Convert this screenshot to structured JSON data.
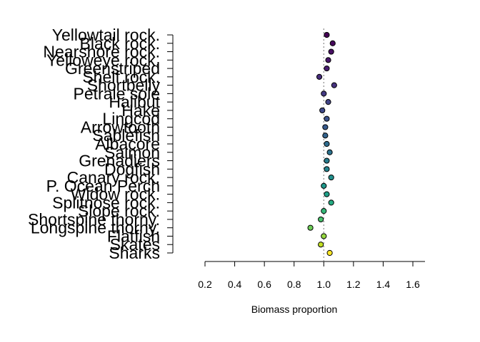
{
  "chart_data": {
    "type": "scatter",
    "xlabel": "Biomass proportion",
    "ylabel": "",
    "title": "",
    "xlim": [
      0.2,
      1.65
    ],
    "xticks": [
      0.2,
      0.4,
      0.6,
      0.8,
      1.0,
      1.2,
      1.4,
      1.6
    ],
    "xtick_labels": [
      "0.2",
      "0.4",
      "0.6",
      "0.8",
      "1.0",
      "1.2",
      "1.4",
      "1.6"
    ],
    "reference_line": 1.0,
    "grid": false,
    "legend": "none",
    "palette": "viridis",
    "categories": [
      "Yellowtail rock.",
      "Black rock.",
      "Nearshore rock.",
      "Yelloweye rock.",
      "Greenstriped",
      "Shelf rock.",
      "Shortbelly",
      "Petrale sole",
      "Halibut",
      "Hake",
      "Lingcod",
      "Arrowtooth",
      "Sablefish",
      "Albacore",
      "Salmon",
      "Grenadiers",
      "Dogfish",
      "Canary rock.",
      "P. Ocean Perch",
      "Widow rock.",
      "Splitnose rock.",
      "Slope rock.",
      "Shortspine thorny.",
      "Longspine thorny.",
      "Flatfish",
      "Skates",
      "Sharks"
    ],
    "values": [
      1.02,
      1.06,
      1.05,
      1.03,
      1.02,
      0.97,
      1.07,
      1.0,
      1.03,
      0.99,
      1.02,
      1.01,
      1.01,
      1.02,
      1.04,
      1.02,
      1.02,
      1.05,
      1.0,
      1.02,
      1.05,
      1.0,
      0.98,
      0.91,
      1.0,
      0.98,
      1.04
    ],
    "colors": [
      "#440154",
      "#46085c",
      "#471063",
      "#481769",
      "#481d6f",
      "#472d7b",
      "#46337f",
      "#443a83",
      "#414487",
      "#3e4989",
      "#3b528b",
      "#375a8c",
      "#33638d",
      "#2f6c8e",
      "#2c728e",
      "#287c8e",
      "#25848e",
      "#21908d",
      "#1f988b",
      "#1fa088",
      "#25ab82",
      "#35b779",
      "#4ac16d",
      "#6ece58",
      "#95d840",
      "#c2df23",
      "#fde725"
    ]
  }
}
